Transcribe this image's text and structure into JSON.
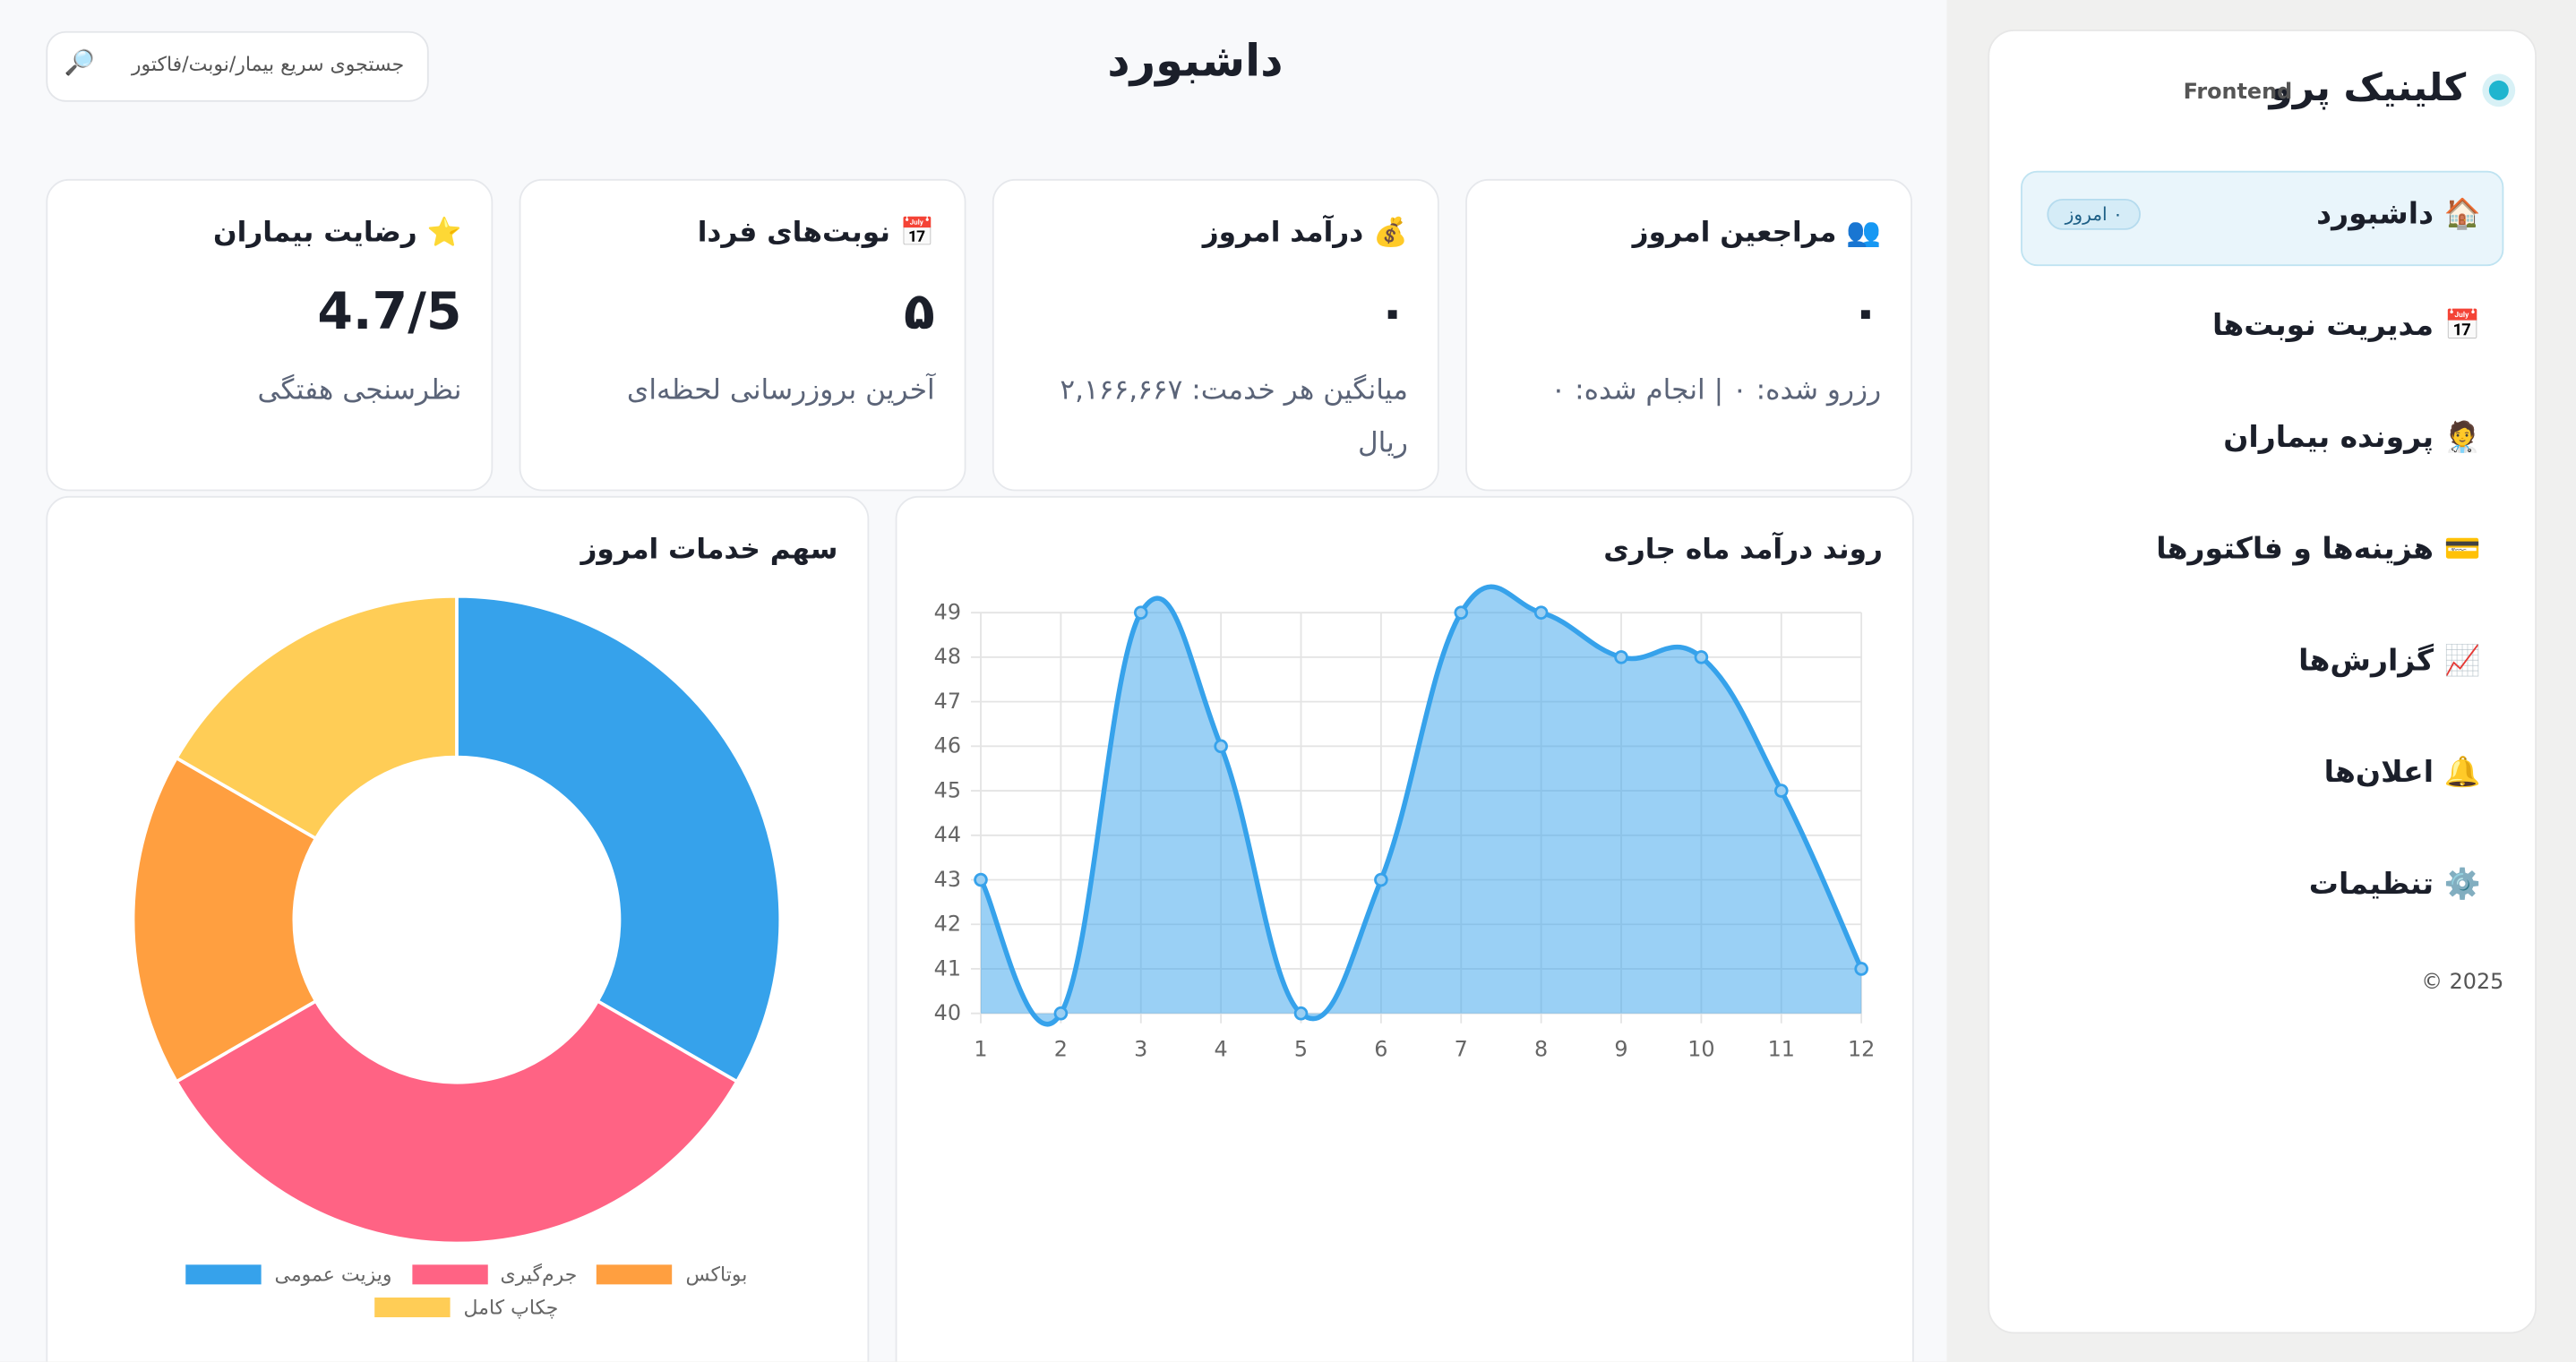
{
  "header": {
    "title": "داشبورد",
    "search_placeholder": "جستجوی سریع بیمار/نوبت/فاکتور",
    "search_icon": "🔎"
  },
  "sidebar": {
    "brand": "کلینیک پرو",
    "tag": "Frontend",
    "badge": "۰ امروز",
    "footer": "© 2025",
    "items": [
      "🏠 داشبورد",
      "📅 مدیریت نوبت‌ها",
      "🧑‍⚕️ پرونده بیماران",
      "💳 هزینه‌ها و فاکتورها",
      "📈 گزارش‌ها",
      "🔔 اعلان‌ها",
      "⚙️ تنظیمات"
    ]
  },
  "cards": [
    {
      "title": "👥 مراجعین امروز",
      "value": "۰",
      "subtitle": "رزرو شده: ۰ | انجام شده: ۰"
    },
    {
      "title": "💰 درآمد امروز",
      "value": "۰",
      "subtitle": "میانگین هر خدمت: ۲,۱۶۶,۶۶۷ ریال"
    },
    {
      "title": "📅 نوبت‌های فردا",
      "value": "۵",
      "subtitle": "آخرین بروزرسانی لحظه‌ای"
    },
    {
      "title": "⭐ رضایت بیماران",
      "value": "4.7/5",
      "subtitle": "نظرسنجی هفتگی"
    }
  ],
  "chart_data": [
    {
      "type": "line",
      "title": "روند درآمد ماه جاری",
      "x": [
        1,
        2,
        3,
        4,
        5,
        6,
        7,
        8,
        9,
        10,
        11,
        12
      ],
      "series": [
        {
          "color": "#36a2eb",
          "values": [
            43,
            40,
            49,
            46,
            40,
            43,
            49,
            49,
            48,
            48,
            45,
            41
          ]
        }
      ],
      "xlim": [
        1,
        12
      ],
      "xticks": [
        1,
        2,
        3,
        4,
        5,
        6,
        7,
        8,
        9,
        10,
        11,
        12
      ],
      "ylim": [
        40,
        49
      ],
      "yticks": [
        40,
        41,
        42,
        43,
        44,
        45,
        46,
        47,
        48,
        49
      ],
      "grid": true,
      "fill": true
    },
    {
      "type": "doughnut",
      "title": "سهم خدمات امروز",
      "categories": [
        "ویزیت عمومی",
        "جرم‌گیری",
        "بوتاکس",
        "چکاپ کامل"
      ],
      "values": [
        2,
        2,
        1,
        1
      ],
      "colors": [
        "#36a2eb",
        "#ff6384",
        "#ff9f40",
        "#ffcd56"
      ],
      "legend": "bottom"
    }
  ]
}
